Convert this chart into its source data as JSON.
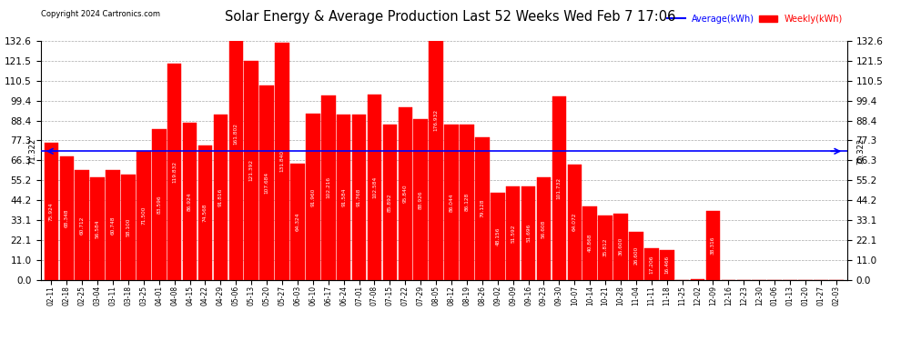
{
  "title": "Solar Energy & Average Production Last 52 Weeks Wed Feb 7 17:06",
  "copyright": "Copyright 2024 Cartronics.com",
  "average_value": 71.322,
  "average_label": "71.322",
  "legend_average": "Average(kWh)",
  "legend_weekly": "Weekly(kWh)",
  "bar_color": "#ff0000",
  "average_line_color": "#0000ff",
  "background_color": "#ffffff",
  "plot_bg_color": "#ffffff",
  "grid_color": "#aaaaaa",
  "ylim": [
    0,
    132.6
  ],
  "yticks": [
    0.0,
    11.0,
    22.1,
    33.1,
    44.2,
    55.2,
    66.3,
    77.3,
    88.4,
    99.4,
    110.5,
    121.5,
    132.6
  ],
  "weeks": [
    "02-11",
    "02-18",
    "02-25",
    "03-04",
    "03-11",
    "03-18",
    "03-25",
    "04-01",
    "04-08",
    "04-15",
    "04-22",
    "04-29",
    "05-06",
    "05-13",
    "05-20",
    "05-27",
    "06-03",
    "06-10",
    "06-17",
    "06-24",
    "07-01",
    "07-08",
    "07-15",
    "07-22",
    "07-29",
    "08-05",
    "08-12",
    "08-19",
    "08-26",
    "09-02",
    "09-09",
    "09-16",
    "09-23",
    "09-30",
    "10-07",
    "10-14",
    "10-21",
    "10-28",
    "11-04",
    "11-11",
    "11-18",
    "11-25",
    "12-02",
    "12-09",
    "12-16",
    "12-23",
    "12-30",
    "01-06",
    "01-13",
    "01-20",
    "01-27",
    "02-03"
  ],
  "bar_values": [
    75.924,
    68.348,
    60.712,
    56.584,
    60.748,
    58.1,
    71.5,
    83.596,
    119.832,
    86.924,
    74.568,
    91.816,
    161.802,
    121.392,
    107.684,
    131.84,
    64.324,
    91.96,
    102.216,
    91.584,
    91.768,
    102.584,
    85.892,
    95.84,
    88.926,
    176.932,
    86.044,
    86.128,
    79.128,
    48.156,
    51.592,
    51.696,
    56.608,
    101.732,
    64.072,
    40.868,
    35.812,
    36.6,
    26.6,
    17.206,
    16.466,
    0.0,
    0.148,
    38.316,
    0.0,
    0.0,
    0.0,
    0.0,
    0.0,
    0.0,
    0.0,
    0.0
  ]
}
